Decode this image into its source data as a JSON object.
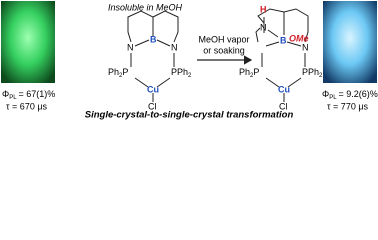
{
  "panels": [
    {
      "pl_symbol": "Φ",
      "pl_subscript": "PL",
      "pl_value": "= 67(1)%",
      "lifetime": "τ = 670 μs"
    },
    {
      "pl_symbol": "Φ",
      "pl_subscript": "PL",
      "pl_value": "= 9.2(6)%",
      "lifetime": "τ = 770 μs"
    }
  ],
  "reactant": {
    "note": "Insoluble in MeOH",
    "atoms": [
      "N",
      "B",
      "N",
      "Ph",
      "2",
      "P",
      "P",
      "Ph",
      "2",
      "Cu",
      "Cl"
    ]
  },
  "conditions": [
    "MeOH vapor",
    "or soaking"
  ],
  "product": {
    "atoms": [
      "H",
      "N",
      "B",
      "OMe",
      "N",
      "Ph",
      "2",
      "P",
      "P",
      "Ph",
      "2",
      "Cu",
      "Cl"
    ]
  },
  "caption": "Single-crystal-to-single-crystal transformation"
}
